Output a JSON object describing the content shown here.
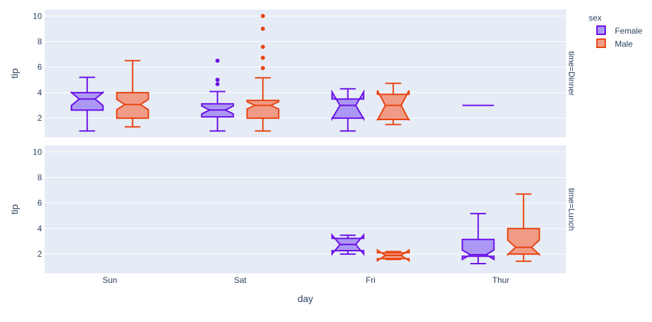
{
  "chart_data": {
    "type": "box",
    "notched": true,
    "xlabel": "day",
    "ylabel": "tip",
    "categories": [
      "Sun",
      "Sat",
      "Fri",
      "Thur"
    ],
    "ylim": [
      0.5,
      10.5
    ],
    "yticks": [
      2,
      4,
      6,
      8,
      10
    ],
    "grid": true,
    "legend": {
      "title": "sex",
      "placement": "top-right",
      "entries": [
        "Female",
        "Male"
      ]
    },
    "colors": {
      "Female": {
        "line": "#6a0fe6",
        "fill": "#ab98f5"
      },
      "Male": {
        "line": "#e8430f",
        "fill": "#ef9b86"
      }
    },
    "facets": [
      {
        "label": "time=Dinner",
        "series": [
          {
            "name": "Female",
            "boxes": [
              {
                "day": "Sun",
                "low": 1.0,
                "q1": 2.63,
                "median": 3.5,
                "q3": 4.0,
                "high": 5.2,
                "notch": [
                  2.99,
                  4.01
                ],
                "outliers": []
              },
              {
                "day": "Sat",
                "low": 1.0,
                "q1": 2.1,
                "median": 2.64,
                "q3": 3.12,
                "high": 4.08,
                "notch": [
                  2.33,
                  2.95
                ],
                "outliers": [
                  4.67,
                  5.0,
                  6.5
                ]
              },
              {
                "day": "Fri",
                "low": 1.0,
                "q1": 2.0,
                "median": 3.0,
                "q3": 3.5,
                "high": 4.3,
                "notch": [
                  1.95,
                  4.05
                ],
                "outliers": []
              },
              {
                "day": "Thur",
                "low": 3.0,
                "q1": 3.0,
                "median": 3.0,
                "q3": 3.0,
                "high": 3.0,
                "notch": [
                  3.0,
                  3.0
                ],
                "outliers": []
              }
            ]
          },
          {
            "name": "Male",
            "boxes": [
              {
                "day": "Sun",
                "low": 1.32,
                "q1": 2.0,
                "median": 3.07,
                "q3": 4.0,
                "high": 6.5,
                "notch": [
                  2.66,
                  3.48
                ],
                "outliers": []
              },
              {
                "day": "Sat",
                "low": 1.0,
                "q1": 2.0,
                "median": 3.0,
                "q3": 3.39,
                "high": 5.16,
                "notch": [
                  2.72,
                  3.28
                ],
                "outliers": [
                  5.92,
                  6.73,
                  7.58,
                  9.0,
                  10.0
                ]
              },
              {
                "day": "Fri",
                "low": 1.5,
                "q1": 1.9,
                "median": 3.0,
                "q3": 3.87,
                "high": 4.73,
                "notch": [
                  1.83,
                  4.17
                ],
                "outliers": []
              }
            ]
          }
        ]
      },
      {
        "label": "time=Lunch",
        "series": [
          {
            "name": "Female",
            "boxes": [
              {
                "day": "Fri",
                "low": 2.0,
                "q1": 2.27,
                "median": 2.75,
                "q3": 3.23,
                "high": 3.48,
                "notch": [
                  2.0,
                  3.5
                ],
                "outliers": []
              },
              {
                "day": "Thur",
                "low": 1.25,
                "q1": 1.83,
                "median": 1.95,
                "q3": 3.15,
                "high": 5.17,
                "notch": [
                  1.58,
                  2.32
                ],
                "outliers": []
              }
            ]
          },
          {
            "name": "Male",
            "boxes": [
              {
                "day": "Fri",
                "low": 1.58,
                "q1": 1.64,
                "median": 1.9,
                "q3": 2.1,
                "high": 2.2,
                "notch": [
                  1.48,
                  2.32
                ],
                "outliers": []
              },
              {
                "day": "Thur",
                "low": 1.44,
                "q1": 2.0,
                "median": 2.53,
                "q3": 4.0,
                "high": 6.7,
                "notch": [
                  1.96,
                  3.1
                ],
                "outliers": []
              }
            ]
          }
        ]
      }
    ]
  }
}
